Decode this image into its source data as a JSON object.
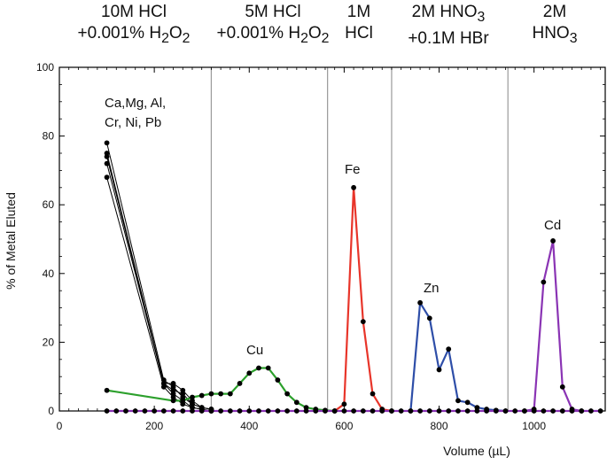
{
  "chart_data": {
    "type": "line",
    "xlabel": "Volume (µL)",
    "ylabel": "% of Metal Eluted",
    "xlim": [
      0,
      1150
    ],
    "ylim": [
      0,
      100
    ],
    "x_ticks": [
      "0",
      "200",
      "400",
      "600",
      "800",
      "1000"
    ],
    "y_ticks": [
      "0",
      "20",
      "40",
      "60",
      "80",
      "100"
    ],
    "grid": false,
    "dividers_x": [
      320,
      565,
      700,
      945
    ],
    "fractions": [
      {
        "line1": "10M HCl",
        "line2_pre": "+0.001% H",
        "sub1": "2",
        "line2_mid": "O",
        "sub2": "2",
        "x_center": 160
      },
      {
        "line1": "5M HCl",
        "line2_pre": "+0.001% H",
        "sub1": "2",
        "line2_mid": "O",
        "sub2": "2",
        "x_center": 440
      },
      {
        "line1": "1M",
        "line2_pre": "HCl",
        "sub1": "",
        "line2_mid": "",
        "sub2": "",
        "x_center": 632
      },
      {
        "line1_pre": "2M HNO",
        "line1_sub": "3",
        "line2_pre": "+0.1M HBr",
        "sub1": "",
        "line2_mid": "",
        "sub2": "",
        "x_center": 822
      },
      {
        "line1": "2M",
        "line2_pre": "HNO",
        "sub1": "3",
        "line2_mid": "",
        "sub2": "",
        "x_center": 1045
      }
    ],
    "annotations": {
      "group_line1": "Ca,Mg, Al,",
      "group_line2": "Cr, Ni, Pb",
      "cu": "Cu",
      "fe": "Fe",
      "zn": "Zn",
      "cd": "Cd"
    },
    "series": [
      {
        "name": "Ca,Mg, Al, Cr, Ni, Pb",
        "color": "#000000",
        "x": [
          100,
          220,
          240,
          260,
          280,
          300,
          320
        ],
        "y": [
          78,
          9,
          7,
          4,
          2,
          1,
          0.5
        ]
      },
      {
        "name": "Ca,Mg, Al, Cr, Ni, Pb",
        "color": "#000000",
        "x": [
          100,
          220,
          240,
          260,
          280,
          300,
          320
        ],
        "y": [
          75,
          8,
          8,
          6,
          3,
          1,
          0.5
        ]
      },
      {
        "name": "Ca,Mg, Al, Cr, Ni, Pb",
        "color": "#000000",
        "x": [
          100,
          220,
          240,
          260,
          280,
          300,
          320
        ],
        "y": [
          74,
          8,
          6,
          5,
          2,
          1,
          0.5
        ]
      },
      {
        "name": "Ca,Mg, Al, Cr, Ni, Pb",
        "color": "#000000",
        "x": [
          100,
          220,
          240,
          260,
          280,
          300,
          320
        ],
        "y": [
          72,
          8,
          5,
          3,
          1,
          0.5,
          0
        ]
      },
      {
        "name": "Ca,Mg, Al, Cr, Ni, Pb",
        "color": "#000000",
        "x": [
          100,
          220,
          240,
          260,
          280,
          300,
          320
        ],
        "y": [
          68,
          7,
          4,
          2,
          1,
          0.5,
          0
        ]
      },
      {
        "name": "Cu",
        "color": "#2ca02c",
        "x": [
          100,
          240,
          260,
          280,
          300,
          320,
          340,
          360,
          380,
          400,
          420,
          440,
          460,
          480,
          500,
          520,
          540,
          560,
          580
        ],
        "y": [
          6,
          3,
          3,
          4,
          4.5,
          5,
          5,
          5,
          8,
          11,
          12.5,
          12.5,
          9,
          5,
          2.5,
          1,
          0.5,
          0.2,
          0
        ]
      },
      {
        "name": "Fe",
        "color": "#e8352a",
        "x": [
          580,
          600,
          620,
          640,
          660,
          680,
          700
        ],
        "y": [
          0,
          2,
          65,
          26,
          5,
          0.5,
          0
        ]
      },
      {
        "name": "Zn",
        "color": "#2e4ea8",
        "x": [
          740,
          760,
          780,
          800,
          820,
          840,
          860,
          880,
          900,
          920,
          940
        ],
        "y": [
          0,
          31.5,
          27,
          12,
          18,
          3,
          2.5,
          1,
          0.5,
          0.2,
          0
        ]
      },
      {
        "name": "Cd",
        "color": "#8a34b4",
        "x": [
          980,
          1000,
          1020,
          1040,
          1060,
          1080,
          1100
        ],
        "y": [
          0,
          0.5,
          37.5,
          49.5,
          7,
          0.5,
          0
        ]
      },
      {
        "name": "baseline",
        "color": "#8a34b4",
        "x": [
          100,
          120,
          140,
          160,
          180,
          200,
          220,
          240,
          260,
          280,
          300,
          320,
          340,
          360,
          380,
          400,
          420,
          440,
          460,
          480,
          500,
          520,
          540,
          560,
          580,
          600,
          620,
          640,
          660,
          680,
          700,
          720,
          740,
          760,
          780,
          800,
          820,
          840,
          860,
          880,
          900,
          920,
          940,
          960,
          980,
          1000,
          1020,
          1040,
          1060,
          1080,
          1100,
          1120,
          1140
        ],
        "y": [
          0,
          0,
          0,
          0,
          0,
          0,
          0,
          0,
          0,
          0,
          0,
          0,
          0,
          0,
          0,
          0,
          0,
          0,
          0,
          0,
          0,
          0,
          0,
          0,
          0,
          0,
          0,
          0,
          0,
          0,
          0,
          0,
          0,
          0,
          0,
          0,
          0,
          0,
          0,
          0,
          0,
          0,
          0,
          0,
          0,
          0,
          0,
          0,
          0,
          0,
          0,
          0,
          0
        ]
      }
    ]
  }
}
